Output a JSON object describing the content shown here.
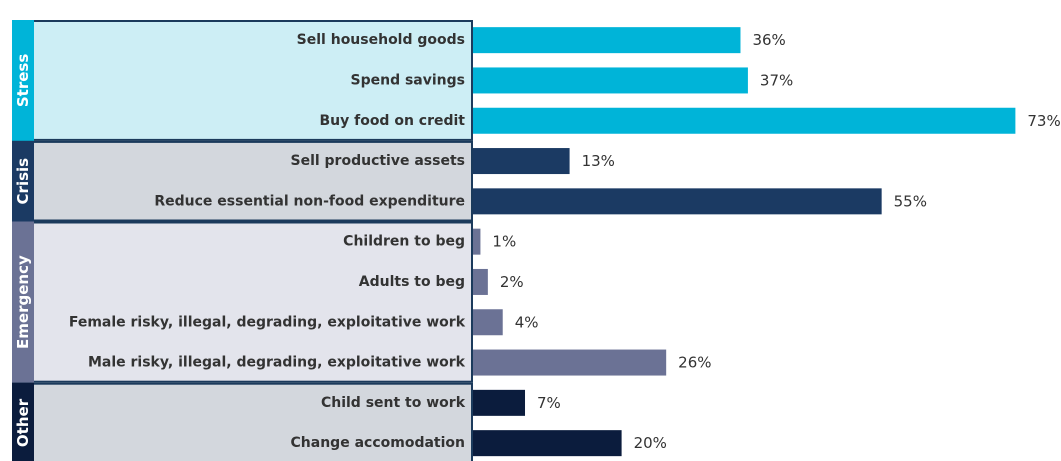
{
  "chart_data": {
    "type": "bar",
    "orientation": "horizontal",
    "value_suffix": "%",
    "xlim": [
      0,
      73
    ],
    "groups": [
      {
        "name": "Stress",
        "color": "#00b4d8",
        "box_fill": "#cdeef5",
        "tab_color": "#00b4d8",
        "items": [
          {
            "label": "Sell household goods",
            "value": 36
          },
          {
            "label": "Spend savings",
            "value": 37
          },
          {
            "label": "Buy food on credit",
            "value": 73
          }
        ]
      },
      {
        "name": "Crisis",
        "color": "#1b3a63",
        "box_fill": "#d3d7dd",
        "tab_color": "#1b3a63",
        "items": [
          {
            "label": "Sell productive assets",
            "value": 13
          },
          {
            "label": "Reduce essential non-food expenditure",
            "value": 55
          }
        ]
      },
      {
        "name": "Emergency",
        "color": "#6b7295",
        "box_fill": "#e3e4ec",
        "tab_color": "#6b7295",
        "items": [
          {
            "label": "Children to beg",
            "value": 1
          },
          {
            "label": "Adults to beg",
            "value": 2
          },
          {
            "label": "Female risky, illegal, degrading, exploitative work",
            "value": 4
          },
          {
            "label": "Male risky, illegal, degrading, exploitative work",
            "value": 26
          }
        ]
      },
      {
        "name": "Other",
        "color": "#0b1c3d",
        "box_fill": "#d3d7dd",
        "tab_color": "#0b1c3d",
        "items": [
          {
            "label": "Child sent to work",
            "value": 7
          },
          {
            "label": "Change accomodation",
            "value": 20
          }
        ]
      }
    ]
  }
}
